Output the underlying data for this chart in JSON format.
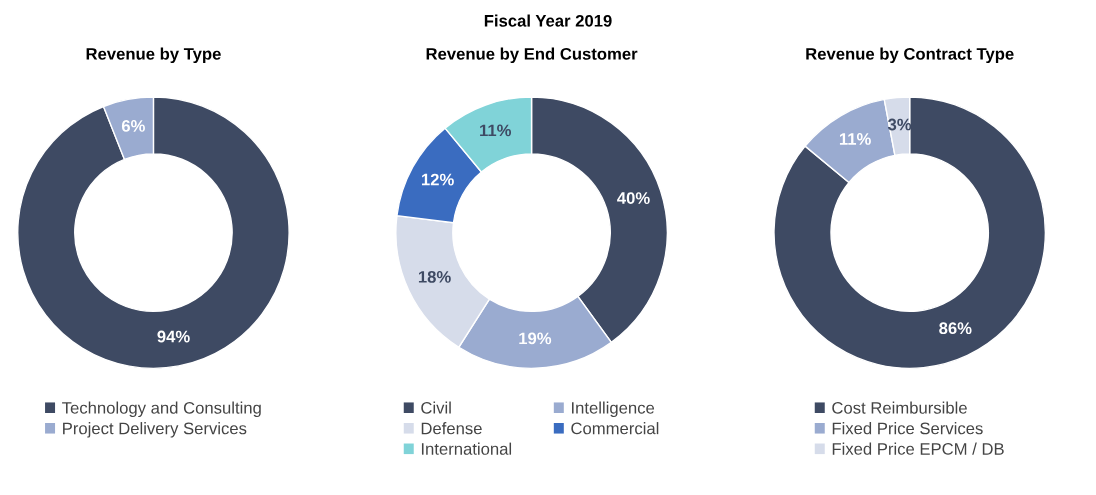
{
  "chart_data": [
    {
      "type": "donut",
      "title": "Revenue by Type",
      "annotations": [
        "Fiscal Year 2019"
      ],
      "categories": [
        "Technology and Consulting",
        "Project Delivery Services"
      ],
      "values": [
        94,
        6
      ],
      "colors": [
        "#3e4a63",
        "#9aabd0"
      ],
      "value_labels": [
        "94%",
        "6%"
      ],
      "legend": "bottom"
    },
    {
      "type": "donut",
      "title": "Revenue by End Customer",
      "categories": [
        "Civil",
        "Intelligence",
        "Defense",
        "Commercial",
        "International"
      ],
      "values": [
        40,
        19,
        18,
        12,
        11
      ],
      "colors": [
        "#3e4a63",
        "#9aabd0",
        "#d6dcea",
        "#3a6cc0",
        "#80d3d8"
      ],
      "value_labels": [
        "40%",
        "19%",
        "18%",
        "12%",
        "11%"
      ],
      "legend": "bottom"
    },
    {
      "type": "donut",
      "title": "Revenue by Contract Type",
      "categories": [
        "Cost Reimbursible",
        "Fixed Price Services",
        "Fixed Price EPCM / DB"
      ],
      "values": [
        86,
        11,
        3
      ],
      "colors": [
        "#3e4a63",
        "#9aabd0",
        "#d6dcea"
      ],
      "value_labels": [
        "86%",
        "11%",
        "3%"
      ],
      "legend": "bottom"
    }
  ]
}
